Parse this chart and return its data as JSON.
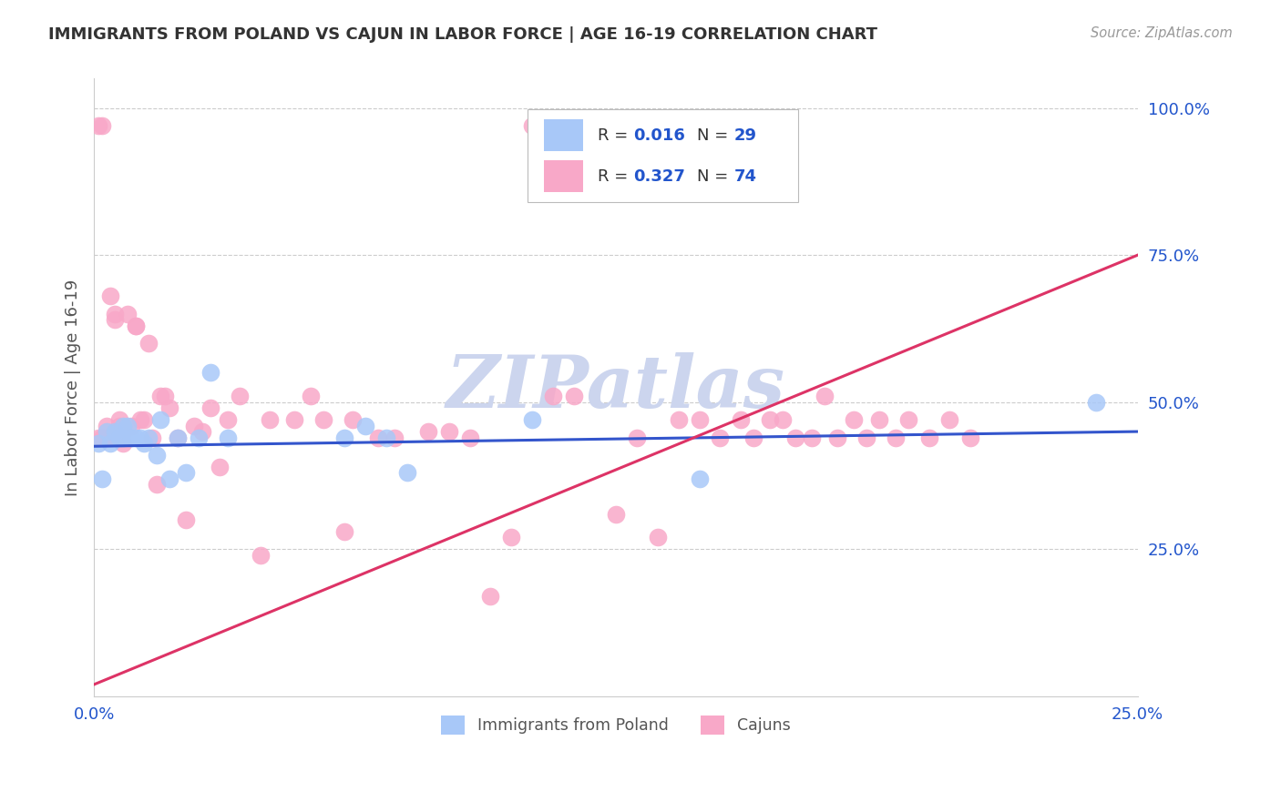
{
  "title": "IMMIGRANTS FROM POLAND VS CAJUN IN LABOR FORCE | AGE 16-19 CORRELATION CHART",
  "source": "Source: ZipAtlas.com",
  "ylabel": "In Labor Force | Age 16-19",
  "watermark": "ZIPatlas",
  "poland_color": "#a8c8f8",
  "cajun_color": "#f8a8c8",
  "poland_line_color": "#3355cc",
  "cajun_line_color": "#dd3366",
  "background_color": "#ffffff",
  "grid_color": "#cccccc",
  "title_color": "#333333",
  "source_color": "#999999",
  "axis_label_color": "#555555",
  "tick_label_color": "#2255cc",
  "watermark_color": "#ccd5ee",
  "xlim": [
    0.0,
    0.25
  ],
  "ylim": [
    0.0,
    1.05
  ],
  "poland_x": [
    0.001,
    0.002,
    0.003,
    0.004,
    0.005,
    0.006,
    0.007,
    0.007,
    0.008,
    0.009,
    0.01,
    0.011,
    0.012,
    0.013,
    0.015,
    0.016,
    0.018,
    0.02,
    0.022,
    0.025,
    0.028,
    0.032,
    0.06,
    0.065,
    0.07,
    0.075,
    0.105,
    0.145,
    0.24
  ],
  "poland_y": [
    0.43,
    0.37,
    0.45,
    0.43,
    0.45,
    0.44,
    0.46,
    0.44,
    0.46,
    0.44,
    0.44,
    0.44,
    0.43,
    0.44,
    0.41,
    0.47,
    0.37,
    0.44,
    0.38,
    0.44,
    0.55,
    0.44,
    0.44,
    0.46,
    0.44,
    0.38,
    0.47,
    0.37,
    0.5
  ],
  "cajun_x": [
    0.001,
    0.001,
    0.002,
    0.002,
    0.003,
    0.003,
    0.004,
    0.004,
    0.005,
    0.005,
    0.006,
    0.006,
    0.007,
    0.007,
    0.008,
    0.009,
    0.01,
    0.01,
    0.011,
    0.012,
    0.013,
    0.014,
    0.015,
    0.016,
    0.017,
    0.018,
    0.02,
    0.022,
    0.024,
    0.026,
    0.028,
    0.03,
    0.032,
    0.035,
    0.04,
    0.042,
    0.048,
    0.052,
    0.055,
    0.06,
    0.062,
    0.068,
    0.072,
    0.08,
    0.085,
    0.09,
    0.095,
    0.1,
    0.105,
    0.11,
    0.115,
    0.12,
    0.125,
    0.13,
    0.135,
    0.14,
    0.145,
    0.15,
    0.155,
    0.158,
    0.162,
    0.165,
    0.168,
    0.172,
    0.175,
    0.178,
    0.182,
    0.185,
    0.188,
    0.192,
    0.195,
    0.2,
    0.205,
    0.21
  ],
  "cajun_y": [
    0.44,
    0.97,
    0.44,
    0.97,
    0.44,
    0.46,
    0.44,
    0.68,
    0.65,
    0.64,
    0.46,
    0.47,
    0.45,
    0.43,
    0.65,
    0.46,
    0.63,
    0.63,
    0.47,
    0.47,
    0.6,
    0.44,
    0.36,
    0.51,
    0.51,
    0.49,
    0.44,
    0.3,
    0.46,
    0.45,
    0.49,
    0.39,
    0.47,
    0.51,
    0.24,
    0.47,
    0.47,
    0.51,
    0.47,
    0.28,
    0.47,
    0.44,
    0.44,
    0.45,
    0.45,
    0.44,
    0.17,
    0.27,
    0.97,
    0.51,
    0.51,
    0.97,
    0.31,
    0.44,
    0.27,
    0.47,
    0.47,
    0.44,
    0.47,
    0.44,
    0.47,
    0.47,
    0.44,
    0.44,
    0.51,
    0.44,
    0.47,
    0.44,
    0.47,
    0.44,
    0.47,
    0.44,
    0.47,
    0.44
  ]
}
